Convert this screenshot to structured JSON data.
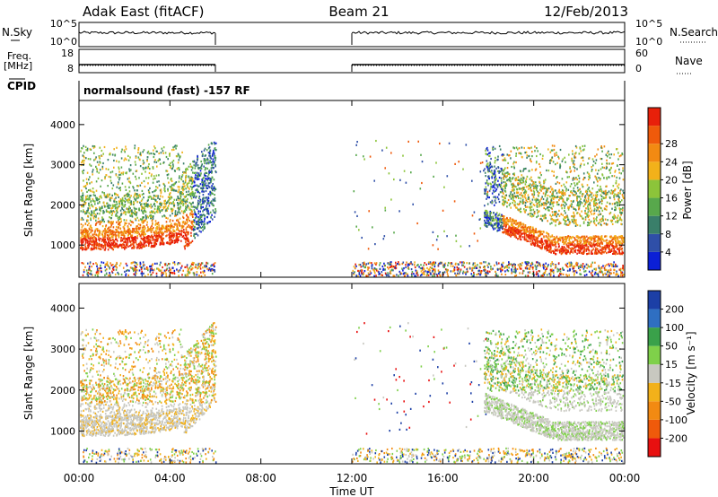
{
  "header": {
    "station": "Adak East (fitACF)",
    "beam": "Beam 21",
    "date": "12/Feb/2013"
  },
  "top_strip": {
    "left_label": "N.Sky",
    "left_ticks": [
      "10^5",
      "10^0"
    ],
    "right_ticks": [
      "10^5",
      "10^0"
    ],
    "right_label": "N.Search"
  },
  "freq_strip": {
    "left_label_1": "Freq.",
    "left_label_2": "[MHz]",
    "left_ticks": [
      "18",
      "8"
    ],
    "right_ticks": [
      "60",
      "0"
    ],
    "right_label": "Nave"
  },
  "cpid": {
    "label": "CPID",
    "text": "normalsound (fast) -157 RF"
  },
  "chart_data": [
    {
      "type": "heatmap",
      "name": "power",
      "ylabel": "Slant Range [km]",
      "ylim": [
        200,
        4600
      ],
      "yticks": [
        "1000",
        "2000",
        "3000",
        "4000"
      ],
      "colorbar": {
        "label": "Power [dB]",
        "ticks": [
          "4",
          "8",
          "12",
          "16",
          "20",
          "24",
          "28"
        ],
        "colors": [
          "#0b1fd6",
          "#2f4fa8",
          "#3a7f6a",
          "#58a84c",
          "#8cc43a",
          "#f2b11a",
          "#f28a12",
          "#ef5a0b",
          "#e8200a"
        ]
      },
      "time_ranges_hours": [
        [
          0,
          6
        ],
        [
          12,
          24
        ]
      ]
    },
    {
      "type": "heatmap",
      "name": "velocity",
      "ylabel": "Slant Range [km]",
      "ylim": [
        200,
        4600
      ],
      "yticks": [
        "1000",
        "2000",
        "3000",
        "4000"
      ],
      "colorbar": {
        "label": "Velocity [m s⁻¹]",
        "ticks": [
          "200",
          "100",
          "50",
          "15",
          "-15",
          "-50",
          "-100",
          "-200"
        ],
        "colors": [
          "#1c3fa6",
          "#2f6fc2",
          "#3aa14a",
          "#7fd04a",
          "#c8c8c0",
          "#f2b11a",
          "#f28a12",
          "#ef5a0b",
          "#e81010"
        ]
      },
      "time_ranges_hours": [
        [
          0,
          6
        ],
        [
          12,
          24
        ]
      ]
    }
  ],
  "x_axis": {
    "ticks": [
      "00:00",
      "04:00",
      "08:00",
      "12:00",
      "16:00",
      "20:00",
      "00:00"
    ],
    "label": "Time UT"
  }
}
